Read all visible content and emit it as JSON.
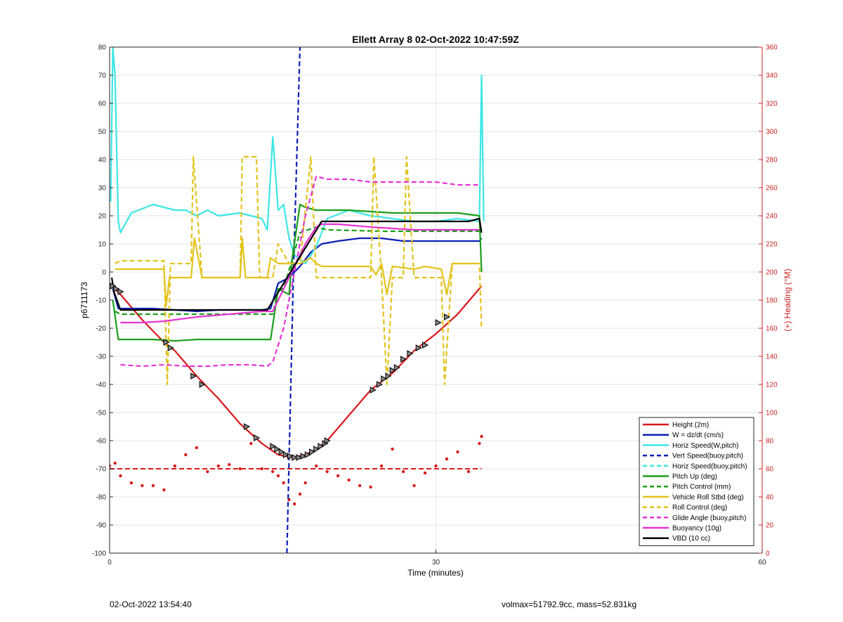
{
  "footer": {
    "left": "02-Oct-2022 13:54:40",
    "right": "volmax=51792.9cc, mass=52.831kg"
  },
  "chart_data": {
    "type": "line",
    "title": "Ellett Array 8 02-Oct-2022 10:47:59Z",
    "xlabel": "Time (minutes)",
    "ylabel": "p6711173",
    "y2label": "(+) Heading (°M)",
    "xlim": [
      0,
      60
    ],
    "ylim": [
      -100,
      80
    ],
    "y2lim": [
      0,
      360
    ],
    "xticks": [
      0,
      30,
      60
    ],
    "yticks": [
      80,
      70,
      60,
      50,
      40,
      30,
      20,
      10,
      0,
      -10,
      -20,
      -30,
      -40,
      -50,
      -60,
      -70,
      -80,
      -90,
      -100
    ],
    "y2ticks": [
      360,
      340,
      320,
      300,
      280,
      260,
      240,
      220,
      200,
      180,
      160,
      140,
      120,
      100,
      80,
      60,
      40,
      20,
      0
    ],
    "grid": true,
    "legend_position": "bottom-right",
    "colors": {
      "red": "#d7191c",
      "blue": "#0a1fb5",
      "cyan": "#3ee6e6",
      "green": "#1a9e1a",
      "yellow": "#e3c31c",
      "magenta": "#e633d4",
      "black": "#000000",
      "right_axis": "#cc2222"
    },
    "series": [
      {
        "name": "Height (2m)",
        "color": "#d7191c",
        "style": "solid",
        "x": [
          0.2,
          1,
          3,
          5,
          6,
          8,
          10,
          12,
          14,
          15.5,
          16.8,
          18,
          19,
          20,
          22,
          24,
          26,
          28,
          30,
          32,
          34.2
        ],
        "y": [
          -5,
          -8,
          -17,
          -25,
          -28,
          -37,
          -45,
          -54,
          -61,
          -65,
          -66,
          -65,
          -63,
          -60,
          -51,
          -42,
          -36,
          -28,
          -22,
          -15,
          -5
        ]
      },
      {
        "name": "W = dz/dt (cm/s)",
        "color": "#0a1fb5",
        "style": "solid",
        "x": [
          0.3,
          0.8,
          2,
          4,
          6,
          8,
          10,
          12,
          14,
          14.8,
          15.5,
          16.5,
          17.5,
          18.5,
          19.5,
          21,
          23,
          25,
          27,
          29,
          31,
          33,
          34,
          34.2
        ],
        "y": [
          -6,
          -13,
          -13,
          -13,
          -13.5,
          -14,
          -13.5,
          -13.5,
          -13.5,
          -13,
          -4,
          -2,
          2,
          7,
          10,
          11,
          12,
          12,
          11,
          11,
          11,
          11,
          11,
          12
        ]
      },
      {
        "name": "Horiz Speed(W,pitch)",
        "color": "#3ee6e6",
        "style": "solid",
        "x": [
          0.1,
          0.3,
          0.5,
          0.8,
          1,
          2,
          4,
          6,
          7,
          8,
          9,
          10,
          12,
          14,
          14.5,
          15,
          15.5,
          16,
          16.5,
          17,
          18,
          19,
          20,
          22,
          24,
          26,
          28,
          30,
          32,
          34,
          34.2,
          34.4
        ],
        "y": [
          25,
          80,
          70,
          18,
          14,
          21,
          24,
          22,
          22,
          20,
          22,
          20,
          21,
          19,
          15,
          48,
          22,
          24,
          12,
          6,
          3,
          9,
          19,
          22,
          20,
          19,
          18,
          18,
          19,
          18,
          70,
          18
        ]
      },
      {
        "name": "Vert Speed(buoy,pitch)",
        "color": "#0a1fb5",
        "style": "dashed",
        "x": [
          16.3,
          16.9,
          17.5
        ],
        "y": [
          -100,
          0,
          80
        ]
      },
      {
        "name": "Horiz Speed(buoy,pitch)",
        "color": "#3ee6e6",
        "style": "dashed",
        "x": [],
        "y": []
      },
      {
        "name": "Pitch Up (deg)",
        "color": "#1a9e1a",
        "style": "solid",
        "x": [
          0.3,
          0.8,
          2,
          4,
          6,
          8,
          10,
          12,
          14,
          14.8,
          15.5,
          16.5,
          16.8,
          17.5,
          18,
          19,
          20,
          22,
          24,
          26,
          28,
          30,
          32,
          34,
          34.2
        ],
        "y": [
          -10,
          -24,
          -24,
          -24,
          -24.5,
          -24,
          -24,
          -24,
          -24,
          -24,
          -6,
          -8,
          5,
          24,
          23,
          22,
          22,
          22,
          21.5,
          21,
          21,
          21,
          21,
          20,
          0
        ]
      },
      {
        "name": "Pitch Control (mm)",
        "color": "#1a9e1a",
        "style": "dashed",
        "x": [
          0.5,
          1,
          5,
          10,
          15,
          15.5,
          16,
          17.5,
          19,
          20,
          25,
          30,
          34
        ],
        "y": [
          -14,
          -15,
          -15,
          -15,
          -15,
          -6,
          -6,
          14,
          16,
          15,
          14.5,
          14.5,
          14.5
        ]
      },
      {
        "name": "Vehicle Roll Stbd (deg)",
        "color": "#e3c31c",
        "style": "solid",
        "x": [
          0.5,
          1,
          5,
          5.2,
          5.5,
          7.5,
          7.8,
          8.5,
          9,
          12,
          12.2,
          12.5,
          14.5,
          14.8,
          15.5,
          16.5,
          17.5,
          18.5,
          19,
          19.5,
          24,
          24.5,
          25,
          25.5,
          26,
          28,
          29,
          30.5,
          31,
          31.5,
          34
        ],
        "y": [
          1,
          1,
          1,
          -12,
          -2,
          -2,
          12,
          -2,
          -2,
          -2,
          12,
          -2,
          -2,
          5,
          3,
          3,
          3,
          5,
          3,
          2,
          2,
          -1,
          3,
          -8,
          2,
          1,
          2,
          1,
          -8,
          3,
          3
        ]
      },
      {
        "name": "Roll Control (deg)",
        "color": "#e3c31c",
        "style": "dashed",
        "x": [
          0.5,
          1,
          5,
          5.3,
          5.6,
          7.5,
          7.7,
          8.5,
          9,
          12,
          12.2,
          13.5,
          13.8,
          15,
          15.5,
          16.5,
          17.5,
          18.5,
          19,
          19.5,
          24,
          24.3,
          25,
          25.5,
          26,
          27,
          27.3,
          28,
          29,
          30.5,
          30.8,
          31.5,
          34,
          34.2
        ],
        "y": [
          3,
          4,
          4,
          -40,
          3,
          3,
          41,
          -2,
          -2,
          -2,
          41,
          41,
          -2,
          -2,
          10,
          3,
          3,
          41,
          -2,
          -2,
          -2,
          41,
          -2,
          -40,
          -2,
          -2,
          41,
          -2,
          -2,
          -2,
          -40,
          3,
          3,
          -20
        ]
      },
      {
        "name": "Glide Angle (buoy,pitch)",
        "color": "#e633d4",
        "style": "dashed",
        "x": [
          1,
          3,
          5,
          7,
          9,
          11,
          13,
          14.5,
          15,
          16,
          17,
          18,
          19,
          20,
          22,
          24,
          26,
          28,
          30,
          32,
          34
        ],
        "y": [
          -33,
          -33.5,
          -33,
          -33.5,
          -33.5,
          -33,
          -33,
          -33.5,
          -32,
          -20,
          0,
          20,
          34,
          33,
          33,
          32,
          32,
          32,
          32,
          31,
          31
        ]
      },
      {
        "name": "Buoyancy (10g)",
        "color": "#e633d4",
        "style": "solid",
        "x": [
          1,
          3,
          5,
          8,
          11,
          14,
          15,
          16,
          17,
          18,
          19,
          19.5,
          21,
          24,
          28,
          31,
          34
        ],
        "y": [
          -18,
          -18,
          -17.5,
          -16,
          -15,
          -14,
          -14,
          -6,
          2,
          10,
          16,
          17,
          17,
          16,
          15,
          15,
          15
        ]
      },
      {
        "name": "VBD (10 cc)",
        "color": "#000000",
        "style": "solid",
        "x": [
          0.2,
          0.4,
          1,
          14.5,
          19.5,
          22,
          26,
          30,
          33,
          34,
          34.2
        ],
        "y": [
          -2,
          -7,
          -13.5,
          -13.5,
          18,
          18,
          18,
          18,
          18,
          19,
          14
        ]
      }
    ],
    "heading_series": {
      "name": "heading dots",
      "axis": "right",
      "color": "#d7191c",
      "x": [
        0,
        0.5,
        1,
        2,
        3,
        4,
        5,
        6,
        7,
        8,
        9,
        10,
        11,
        12,
        13,
        14,
        15,
        15.5,
        16,
        16.5,
        17,
        17.5,
        18,
        19,
        20,
        21,
        22,
        23,
        24,
        25,
        26,
        27,
        28,
        29,
        30,
        31,
        32,
        33,
        34,
        34.2
      ],
      "y": [
        62,
        64,
        55,
        50,
        48,
        48,
        45,
        62,
        70,
        75,
        58,
        62,
        63,
        60,
        78,
        60,
        58,
        55,
        50,
        38,
        35,
        42,
        50,
        62,
        58,
        55,
        52,
        48,
        47,
        62,
        74,
        58,
        48,
        57,
        62,
        67,
        72,
        58,
        78,
        83
      ]
    },
    "heading_reference": {
      "axis": "right",
      "color": "#d7191c",
      "style": "dashed",
      "x": [
        0,
        34.2
      ],
      "y": [
        60,
        60
      ]
    },
    "height_markers": {
      "x": [
        0.3,
        0.6,
        1,
        5.2,
        5.6,
        7.7,
        8.5,
        12.6,
        13.5,
        15,
        15.4,
        15.8,
        16.2,
        16.6,
        17,
        17.4,
        17.8,
        18.2,
        18.6,
        19,
        19.4,
        19.8,
        20,
        24.2,
        24.8,
        25.2,
        25.6,
        26,
        26.4,
        27,
        27.6,
        28.4,
        29,
        30.2,
        31
      ],
      "y": [
        -5,
        -6,
        -7,
        -25,
        -27,
        -37,
        -40,
        -55,
        -59,
        -62,
        -63,
        -64,
        -65,
        -65.5,
        -66,
        -66,
        -65.5,
        -65,
        -64,
        -63,
        -62,
        -61,
        -60,
        -42,
        -40,
        -38,
        -37,
        -35,
        -34,
        -31,
        -29,
        -27,
        -26,
        -18,
        -16
      ]
    }
  }
}
